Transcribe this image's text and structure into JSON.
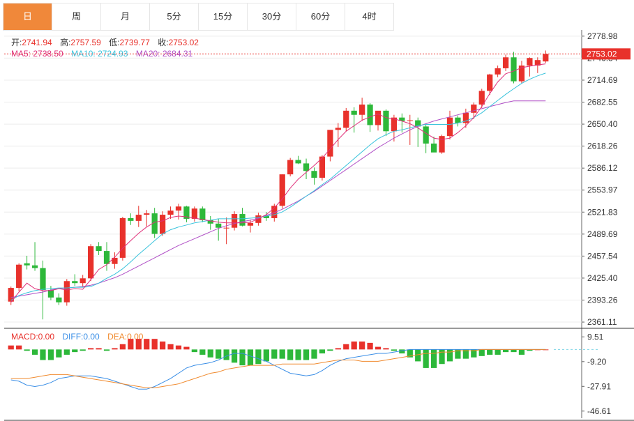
{
  "tabs": [
    "日",
    "周",
    "月",
    "5分",
    "15分",
    "30分",
    "60分",
    "4时"
  ],
  "active_tab": 0,
  "ohlc_legend": {
    "open_label": "开:",
    "open": "2741.94",
    "high_label": "高:",
    "high": "2757.59",
    "low_label": "低:",
    "low": "2739.77",
    "close_label": "收:",
    "close": "2753.02"
  },
  "ma_legend": {
    "ma5": "MA5: 2738.50",
    "ma10": "MA10: 2724.93",
    "ma20": "MA20: 2684.31"
  },
  "macd_legend": {
    "macd": "MACD:0.00",
    "diff": "DIFF:0.00",
    "dea": "DEA:0.00"
  },
  "colors": {
    "up": "#e8312b",
    "down": "#2db83a",
    "ma5": "#e0307a",
    "ma10": "#39c3dc",
    "ma20": "#b04fc6",
    "diff": "#3a8ee6",
    "dea": "#f08a2e",
    "active_tab": "#f0883a",
    "last_price_bg": "#e8312b"
  },
  "chart_data": [
    {
      "type": "candlestick",
      "last_price": "2753.02",
      "y_ticks": [
        "2778.98",
        "2746.84",
        "2714.69",
        "2682.55",
        "2650.40",
        "2618.26",
        "2586.12",
        "2553.97",
        "2521.83",
        "2489.69",
        "2457.54",
        "2425.40",
        "2393.26",
        "2361.11"
      ],
      "ylim": [
        2352,
        2788
      ],
      "candles": [
        [
          2391,
          2413,
          2386,
          2411
        ],
        [
          2411,
          2447,
          2406,
          2445
        ],
        [
          2447,
          2458,
          2438,
          2444
        ],
        [
          2444,
          2478,
          2436,
          2440
        ],
        [
          2440,
          2451,
          2365,
          2408
        ],
        [
          2408,
          2414,
          2393,
          2397
        ],
        [
          2397,
          2403,
          2386,
          2390
        ],
        [
          2390,
          2424,
          2385,
          2421
        ],
        [
          2421,
          2431,
          2414,
          2418
        ],
        [
          2418,
          2430,
          2413,
          2425
        ],
        [
          2425,
          2475,
          2421,
          2472
        ],
        [
          2472,
          2478,
          2459,
          2465
        ],
        [
          2465,
          2478,
          2436,
          2446
        ],
        [
          2446,
          2463,
          2439,
          2455
        ],
        [
          2455,
          2515,
          2451,
          2513
        ],
        [
          2513,
          2520,
          2503,
          2509
        ],
        [
          2509,
          2531,
          2500,
          2518
        ],
        [
          2518,
          2525,
          2501,
          2520
        ],
        [
          2520,
          2528,
          2484,
          2490
        ],
        [
          2490,
          2523,
          2487,
          2518
        ],
        [
          2518,
          2530,
          2512,
          2524
        ],
        [
          2524,
          2534,
          2511,
          2530
        ],
        [
          2530,
          2531,
          2507,
          2512
        ],
        [
          2512,
          2530,
          2508,
          2527
        ],
        [
          2527,
          2530,
          2507,
          2510
        ],
        [
          2510,
          2516,
          2496,
          2505
        ],
        [
          2505,
          2512,
          2480,
          2499
        ],
        [
          2499,
          2514,
          2475,
          2499
        ],
        [
          2499,
          2523,
          2495,
          2519
        ],
        [
          2519,
          2528,
          2501,
          2502
        ],
        [
          2502,
          2511,
          2492,
          2506
        ],
        [
          2506,
          2521,
          2502,
          2517
        ],
        [
          2517,
          2522,
          2509,
          2513
        ],
        [
          2513,
          2534,
          2508,
          2531
        ],
        [
          2531,
          2577,
          2527,
          2577
        ],
        [
          2577,
          2601,
          2574,
          2598
        ],
        [
          2598,
          2604,
          2592,
          2593
        ],
        [
          2593,
          2600,
          2570,
          2582
        ],
        [
          2582,
          2587,
          2562,
          2572
        ],
        [
          2572,
          2605,
          2568,
          2603
        ],
        [
          2603,
          2641,
          2596,
          2642
        ],
        [
          2642,
          2652,
          2617,
          2645
        ],
        [
          2645,
          2674,
          2640,
          2670
        ],
        [
          2670,
          2675,
          2638,
          2664
        ],
        [
          2664,
          2689,
          2655,
          2679
        ],
        [
          2679,
          2681,
          2639,
          2649
        ],
        [
          2649,
          2668,
          2641,
          2670
        ],
        [
          2670,
          2672,
          2633,
          2640
        ],
        [
          2640,
          2664,
          2625,
          2660
        ],
        [
          2660,
          2666,
          2638,
          2655
        ],
        [
          2655,
          2664,
          2620,
          2656
        ],
        [
          2656,
          2660,
          2617,
          2647
        ],
        [
          2647,
          2651,
          2608,
          2622
        ],
        [
          2622,
          2632,
          2610,
          2609
        ],
        [
          2609,
          2635,
          2607,
          2633
        ],
        [
          2633,
          2670,
          2628,
          2660
        ],
        [
          2660,
          2663,
          2647,
          2652
        ],
        [
          2652,
          2673,
          2645,
          2667
        ],
        [
          2667,
          2682,
          2658,
          2679
        ],
        [
          2679,
          2702,
          2674,
          2699
        ],
        [
          2699,
          2724,
          2693,
          2723
        ],
        [
          2723,
          2736,
          2719,
          2732
        ],
        [
          2732,
          2752,
          2728,
          2748
        ],
        [
          2748,
          2756,
          2710,
          2713
        ],
        [
          2713,
          2743,
          2710,
          2736
        ],
        [
          2736,
          2748,
          2720,
          2747
        ],
        [
          2736,
          2748,
          2725,
          2744
        ],
        [
          2742,
          2758,
          2740,
          2753
        ]
      ],
      "ma5": [
        2390,
        2405,
        2418,
        2410,
        2407,
        2407,
        2410,
        2408,
        2410,
        2409,
        2423,
        2438,
        2445,
        2456,
        2469,
        2480,
        2491,
        2500,
        2507,
        2509,
        2514,
        2516,
        2515,
        2513,
        2511,
        2509,
        2507,
        2506,
        2506,
        2506,
        2507,
        2512,
        2518,
        2528,
        2541,
        2557,
        2570,
        2580,
        2590,
        2601,
        2614,
        2628,
        2640,
        2648,
        2656,
        2661,
        2665,
        2660,
        2658,
        2655,
        2651,
        2645,
        2637,
        2630,
        2628,
        2630,
        2638,
        2648,
        2660,
        2676,
        2695,
        2712,
        2724,
        2728,
        2733,
        2735,
        2737,
        2738.5
      ],
      "ma10": [
        2393,
        2400,
        2404,
        2407,
        2409,
        2410,
        2411,
        2411,
        2412,
        2412,
        2413,
        2418,
        2425,
        2431,
        2439,
        2449,
        2460,
        2470,
        2480,
        2490,
        2496,
        2500,
        2503,
        2506,
        2508,
        2510,
        2512,
        2512,
        2512,
        2512,
        2513,
        2514,
        2516,
        2518,
        2522,
        2529,
        2537,
        2545,
        2553,
        2562,
        2570,
        2580,
        2590,
        2600,
        2610,
        2620,
        2629,
        2635,
        2640,
        2642,
        2645,
        2648,
        2650,
        2650,
        2650,
        2650,
        2652,
        2655,
        2660,
        2667,
        2676,
        2685,
        2694,
        2702,
        2710,
        2716,
        2721,
        2724.93
      ],
      "ma20": [
        2397,
        2399,
        2401,
        2403,
        2405,
        2408,
        2410,
        2411,
        2412,
        2413,
        2415,
        2418,
        2422,
        2426,
        2431,
        2437,
        2443,
        2449,
        2455,
        2461,
        2467,
        2473,
        2478,
        2483,
        2488,
        2493,
        2498,
        2502,
        2505,
        2508,
        2510,
        2513,
        2517,
        2521,
        2526,
        2532,
        2538,
        2545,
        2552,
        2560,
        2568,
        2576,
        2584,
        2592,
        2600,
        2608,
        2616,
        2623,
        2630,
        2636,
        2642,
        2647,
        2651,
        2655,
        2658,
        2661,
        2664,
        2667,
        2670,
        2673,
        2676,
        2679,
        2682,
        2684.31,
        2684.31,
        2684.31,
        2684.31,
        2684.31
      ]
    },
    {
      "type": "macd",
      "y_ticks": [
        "9.51",
        "-9.20",
        "-27.91",
        "-46.61"
      ],
      "ylim": [
        -52,
        16
      ],
      "macd_bars": [
        3,
        3,
        -1,
        -4,
        -8,
        -8,
        -6,
        -4,
        -2,
        -1,
        1,
        1,
        -1,
        1,
        4,
        8,
        8,
        8,
        8,
        6,
        4,
        3,
        2,
        -2,
        -4,
        -6,
        -7,
        -8,
        -10,
        -12,
        -12,
        -11,
        -9,
        -7,
        -7,
        -8,
        -8,
        -8,
        -7,
        -3,
        -1,
        1,
        4,
        6,
        6,
        5,
        2,
        1,
        -1,
        -3,
        -6,
        -9,
        -14,
        -14,
        -11,
        -9,
        -7,
        -7,
        -6,
        -5,
        -4,
        -4,
        -2,
        -2,
        -4,
        -1,
        0,
        0
      ],
      "diff": [
        -23,
        -24,
        -27,
        -28,
        -27,
        -25,
        -22,
        -21,
        -20,
        -20,
        -20,
        -21,
        -22,
        -24,
        -26,
        -28,
        -30,
        -30,
        -28,
        -25,
        -22,
        -18,
        -14,
        -12,
        -11,
        -10,
        -8,
        -5,
        -3,
        -3,
        -5,
        -7,
        -9,
        -12,
        -15,
        -18,
        -19,
        -20,
        -19,
        -16,
        -12,
        -9,
        -7,
        -6,
        -5,
        -4,
        -3,
        -3,
        -2,
        -1,
        0,
        0,
        0,
        0,
        0,
        0,
        0,
        0,
        0,
        0,
        0,
        0,
        0,
        0,
        0,
        0,
        0,
        0
      ],
      "dea": [
        -22,
        -22,
        -22,
        -21,
        -20,
        -19,
        -19,
        -19,
        -20,
        -21,
        -22,
        -23,
        -24,
        -25,
        -26,
        -27,
        -28,
        -29,
        -29,
        -28,
        -27,
        -26,
        -24,
        -22,
        -20,
        -18,
        -17,
        -15,
        -14,
        -13,
        -12,
        -12,
        -12,
        -12,
        -11,
        -11,
        -11,
        -11,
        -11,
        -10,
        -9,
        -8,
        -8,
        -8,
        -9,
        -9,
        -9,
        -8,
        -7,
        -6,
        -5,
        -4,
        -3,
        -3,
        -2,
        -2,
        -1,
        -1,
        -1,
        0,
        0,
        0,
        0,
        0,
        0,
        0,
        0,
        0
      ]
    }
  ]
}
